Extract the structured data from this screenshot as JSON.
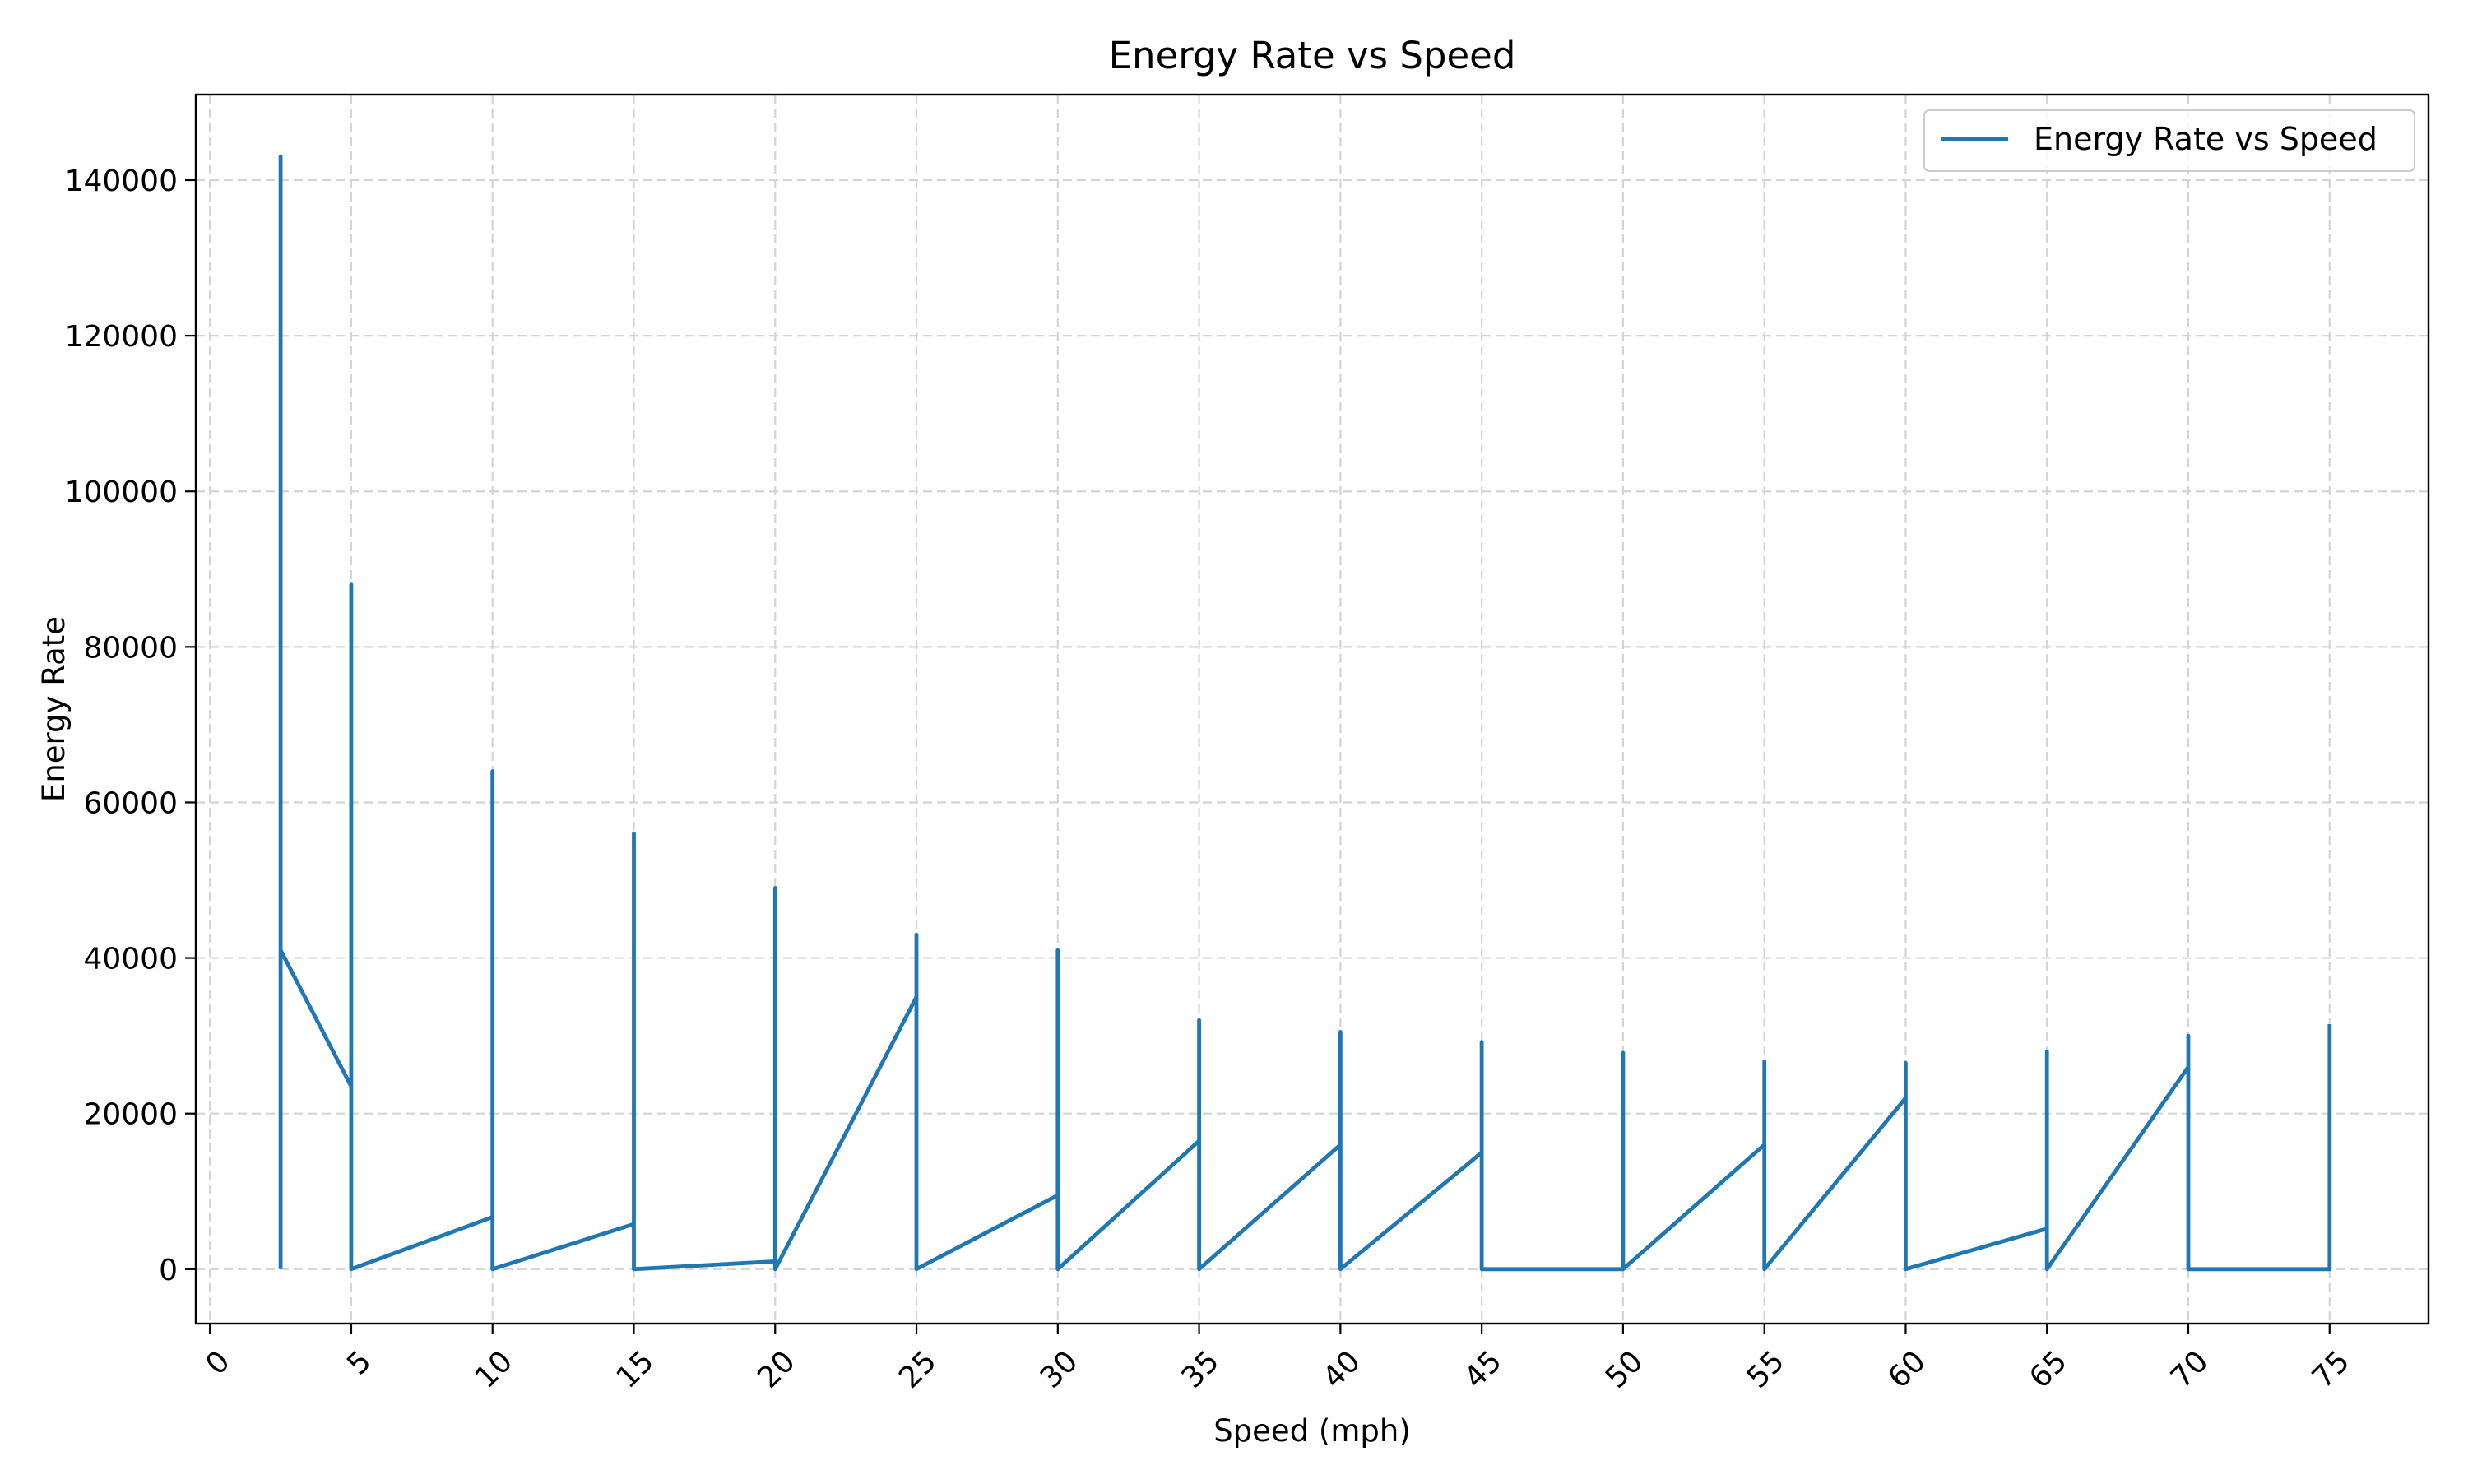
{
  "chart_data": {
    "type": "line",
    "title": "Energy Rate vs Speed",
    "xlabel": "Speed (mph)",
    "ylabel": "Energy Rate",
    "xlim": [
      -0.5,
      78.5
    ],
    "ylim": [
      -7000,
      151000
    ],
    "x_ticks": [
      0,
      5,
      10,
      15,
      20,
      25,
      30,
      35,
      40,
      45,
      50,
      55,
      60,
      65,
      70,
      75
    ],
    "x_tick_labels": [
      "0",
      "5",
      "10",
      "15",
      "20",
      "25",
      "30",
      "35",
      "40",
      "45",
      "50",
      "55",
      "60",
      "65",
      "70",
      "75"
    ],
    "y_ticks": [
      0,
      20000,
      40000,
      60000,
      80000,
      100000,
      120000,
      140000
    ],
    "y_tick_labels": [
      "0",
      "20000",
      "40000",
      "60000",
      "80000",
      "100000",
      "120000",
      "140000"
    ],
    "grid": true,
    "legend_position": "top-right",
    "series": [
      {
        "name": "Energy Rate vs Speed",
        "color": "#1f77b4",
        "x": [
          2.5,
          2.5,
          2.5,
          5,
          5,
          5,
          10,
          10,
          10,
          15,
          15,
          15,
          20,
          20,
          20,
          25,
          25,
          25,
          30,
          30,
          30,
          35,
          35,
          35,
          40,
          40,
          40,
          45,
          45,
          45,
          50,
          50,
          50,
          55,
          55,
          55,
          60,
          60,
          60,
          65,
          65,
          65,
          70,
          70,
          70,
          75,
          75
        ],
        "y": [
          0,
          143000,
          41000,
          23500,
          88000,
          0,
          6700,
          64000,
          0,
          5800,
          56000,
          0,
          1000,
          49000,
          0,
          35000,
          43000,
          0,
          9500,
          41000,
          0,
          16500,
          32000,
          0,
          16000,
          30500,
          0,
          15000,
          29200,
          0,
          0,
          27800,
          0,
          16000,
          26700,
          0,
          22000,
          26500,
          0,
          5200,
          28000,
          0,
          26000,
          30000,
          0,
          0,
          31500
        ]
      }
    ]
  }
}
